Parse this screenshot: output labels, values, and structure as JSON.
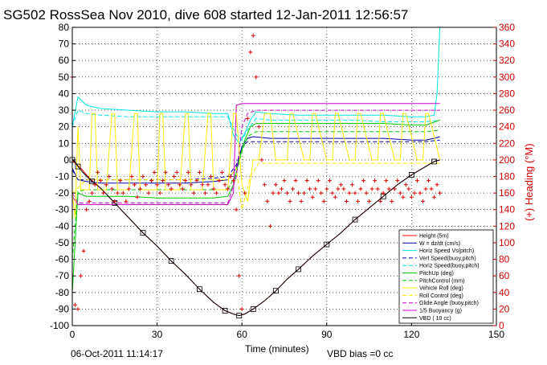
{
  "title": "SG502 RossSea Nov 2010, dive 608 started 12-Jan-2011 12:56:57",
  "footer_date": "06-Oct-2011 11:14:17",
  "footer_bias": "VBD bias =0 cc",
  "chart_data": {
    "type": "line",
    "xlabel": "Time (minutes)",
    "ylabel_right": "(+) Heading (°M)",
    "xlim": [
      0,
      150
    ],
    "ylim": [
      -100,
      80
    ],
    "ylim_right": [
      0,
      360
    ],
    "xticks": [
      "0",
      "30",
      "60",
      "90",
      "120",
      "150"
    ],
    "yticks": [
      "80",
      "70",
      "60",
      "50",
      "40",
      "30",
      "20",
      "10",
      "0",
      "-10",
      "-20",
      "-30",
      "-40",
      "-50",
      "-60",
      "-70",
      "-80",
      "-90",
      "-100"
    ],
    "yticks_right": [
      "360",
      "340",
      "320",
      "300",
      "280",
      "260",
      "240",
      "220",
      "200",
      "180",
      "160",
      "140",
      "120",
      "100",
      "80",
      "60",
      "40",
      "20",
      "0"
    ],
    "grid": true,
    "legend_position": "bottom-right",
    "legend": [
      {
        "name": "Height (5m)",
        "color": "#ff0000",
        "dash": ""
      },
      {
        "name": "W = dz/dt (cm/s)",
        "color": "#0000aa",
        "dash": ""
      },
      {
        "name": "Horiz Speed Vs(pitch)",
        "color": "#00e5e5",
        "dash": ""
      },
      {
        "name": "Vert Speed(buoy,pitch)",
        "color": "#0000aa",
        "dash": "5,3"
      },
      {
        "name": "Horiz Speed(buoy,pitch)",
        "color": "#00e5e5",
        "dash": "5,3"
      },
      {
        "name": "PitchUp (deg)",
        "color": "#00cc00",
        "dash": ""
      },
      {
        "name": "PitchControl (mm)",
        "color": "#00cc00",
        "dash": "5,3"
      },
      {
        "name": "Vehicle Roll (deg)",
        "color": "#ffee00",
        "dash": ""
      },
      {
        "name": "Roll Control (deg)",
        "color": "#ffee00",
        "dash": "5,3"
      },
      {
        "name": "Glide Angle (buoy,pitch)",
        "color": "#cc00cc",
        "dash": "5,3"
      },
      {
        "name": "1/5 Buoyancy (g)",
        "color": "#cc00cc",
        "dash": ""
      },
      {
        "name": "VBD ( 10 cc)",
        "color": "#000000",
        "dash": ""
      }
    ],
    "series": [
      {
        "name": "Height (5m)",
        "color": "#ff0000",
        "x": [
          0,
          1,
          3,
          6,
          10,
          15,
          20,
          25,
          30,
          35,
          40,
          45,
          50,
          54,
          57,
          59,
          61,
          64,
          68,
          72,
          76,
          80,
          85,
          90,
          95,
          100,
          105,
          110,
          115,
          120,
          125,
          128,
          130
        ],
        "y": [
          0,
          -2,
          -5,
          -11,
          -17,
          -26,
          -35,
          -44,
          -52,
          -61,
          -69,
          -78,
          -86,
          -91,
          -93,
          -94,
          -93,
          -90,
          -85,
          -79,
          -72,
          -66,
          -58,
          -51,
          -44,
          -36,
          -29,
          -22,
          -15,
          -9,
          -4,
          -1,
          0
        ]
      },
      {
        "name": "W = dz/dt (cm/s)",
        "color": "#0000aa",
        "x": [
          0,
          2,
          5,
          10,
          20,
          30,
          40,
          50,
          55,
          58,
          60,
          62,
          64,
          70,
          80,
          90,
          100,
          110,
          120,
          125,
          128,
          130
        ],
        "y": [
          -5,
          -12,
          -13,
          -14,
          -14,
          -14,
          -14,
          -13,
          -12,
          -5,
          8,
          13,
          14,
          13,
          13,
          13,
          13,
          13,
          12,
          12,
          13,
          14
        ]
      },
      {
        "name": "Vert Speed(buoy,pitch)",
        "color": "#0000aa",
        "dash": "5,3",
        "x": [
          0,
          2,
          5,
          10,
          20,
          30,
          40,
          50,
          55,
          58,
          60,
          62,
          64,
          70,
          80,
          90,
          100,
          110,
          120,
          125,
          130
        ],
        "y": [
          -6,
          -12,
          -12,
          -12,
          -12,
          -12,
          -12,
          -11,
          -10,
          -3,
          8,
          11,
          11,
          11,
          11,
          11,
          11,
          11,
          11,
          11,
          12
        ]
      },
      {
        "name": "Horiz Speed Vs(pitch)",
        "color": "#00e5e5",
        "x": [
          0,
          2,
          5,
          10,
          20,
          30,
          40,
          50,
          55,
          57,
          59,
          61,
          63,
          65,
          70,
          80,
          90,
          100,
          110,
          120,
          125,
          128,
          129,
          130
        ],
        "y": [
          20,
          38,
          33,
          31,
          30,
          29,
          29,
          28,
          28,
          15,
          10,
          16,
          24,
          29,
          28,
          27,
          27,
          27,
          27,
          26,
          26,
          27,
          40,
          80
        ]
      },
      {
        "name": "Horiz Speed(buoy,pitch)",
        "color": "#00e5e5",
        "dash": "5,3",
        "x": [
          0,
          2,
          5,
          10,
          20,
          30,
          40,
          50,
          55,
          58,
          60,
          62,
          65,
          70,
          80,
          90,
          100,
          110,
          120,
          125,
          130
        ],
        "y": [
          20,
          30,
          28,
          27,
          26,
          26,
          26,
          26,
          26,
          15,
          12,
          18,
          25,
          24,
          24,
          24,
          24,
          23,
          23,
          23,
          24
        ]
      },
      {
        "name": "PitchUp (deg)",
        "color": "#00cc00",
        "x": [
          0,
          2,
          5,
          10,
          20,
          30,
          40,
          50,
          55,
          57,
          59,
          61,
          63,
          65,
          70,
          80,
          90,
          100,
          110,
          120,
          125,
          130
        ],
        "y": [
          -80,
          -20,
          -22,
          -22,
          -22,
          -23,
          -23,
          -23,
          -22,
          -15,
          0,
          12,
          20,
          22,
          22,
          22,
          22,
          22,
          22,
          21,
          21,
          24
        ]
      },
      {
        "name": "PitchControl (mm)",
        "color": "#00cc00",
        "dash": "5,3",
        "x": [
          0,
          2,
          5,
          10,
          20,
          30,
          40,
          50,
          55,
          58,
          60,
          62,
          65,
          70,
          80,
          90,
          100,
          110,
          120,
          125,
          130
        ],
        "y": [
          -60,
          -19,
          -18,
          -18,
          -18,
          -18,
          -18,
          -18,
          -18,
          -8,
          5,
          14,
          17,
          17,
          17,
          17,
          17,
          17,
          17,
          17,
          18
        ]
      },
      {
        "name": "1/5 Buoyancy (g)",
        "color": "#cc00cc",
        "x": [
          0,
          2,
          5,
          10,
          20,
          30,
          40,
          50,
          55,
          57,
          58,
          60,
          62,
          65,
          70,
          80,
          90,
          100,
          110,
          120,
          125,
          130
        ],
        "y": [
          -22,
          -27,
          -27,
          -27,
          -27,
          -27,
          -27,
          -27,
          -27,
          -20,
          33,
          34,
          34,
          34,
          34,
          34,
          34,
          34,
          34,
          34,
          34,
          34
        ]
      },
      {
        "name": "Glide Angle (buoy,pitch)",
        "color": "#cc00cc",
        "dash": "5,3",
        "x": [
          0,
          2,
          5,
          10,
          20,
          30,
          40,
          50,
          55,
          58,
          60,
          62,
          65,
          70,
          80,
          90,
          100,
          110,
          120,
          125,
          130
        ],
        "y": [
          -20,
          -26,
          -26,
          -26,
          -26,
          -26,
          -26,
          -26,
          -26,
          -10,
          20,
          28,
          30,
          30,
          30,
          30,
          30,
          30,
          30,
          30,
          30
        ]
      },
      {
        "name": "Vehicle Roll (deg)",
        "color": "#ffee00",
        "x": [
          0,
          1,
          2,
          3,
          6,
          7,
          8,
          9,
          12,
          14,
          15,
          16,
          20,
          22,
          23,
          24,
          30,
          31,
          32,
          33,
          38,
          40,
          41,
          42,
          46,
          48,
          49,
          50,
          55,
          57,
          58,
          60,
          62,
          64,
          66,
          68,
          70,
          72,
          76,
          77,
          78,
          82,
          84,
          85,
          86,
          90,
          92,
          93,
          94,
          98,
          100,
          101,
          102,
          106,
          108,
          109,
          110,
          114,
          116,
          117,
          118,
          122,
          124,
          125,
          126,
          130
        ],
        "y": [
          -20,
          -35,
          20,
          -18,
          -18,
          28,
          28,
          -18,
          -18,
          28,
          28,
          -18,
          -18,
          28,
          28,
          -18,
          -18,
          28,
          28,
          -18,
          -18,
          28,
          28,
          -18,
          -18,
          28,
          28,
          -18,
          -18,
          28,
          28,
          -15,
          -25,
          0,
          0,
          28,
          28,
          0,
          0,
          28,
          28,
          0,
          0,
          28,
          28,
          0,
          0,
          28,
          28,
          0,
          0,
          28,
          28,
          0,
          0,
          28,
          28,
          0,
          0,
          28,
          28,
          0,
          0,
          28,
          28,
          0
        ]
      },
      {
        "name": "Roll Control (deg)",
        "color": "#ffee00",
        "dash": "5,3",
        "x": [
          0,
          5,
          10,
          20,
          30,
          40,
          50,
          55,
          58,
          60,
          63,
          66,
          70,
          80,
          90,
          100,
          110,
          120,
          130
        ],
        "y": [
          -20,
          -12,
          -12,
          -12,
          -12,
          -12,
          -12,
          -12,
          -5,
          -30,
          -10,
          -2,
          -2,
          -2,
          -2,
          -2,
          -2,
          -2,
          -2
        ]
      },
      {
        "name": "VBD ( 10 cc)",
        "color": "#000000",
        "x": [
          0,
          1,
          2,
          4,
          7,
          10,
          15,
          20,
          25,
          30,
          35,
          40,
          45,
          50,
          54,
          57,
          59,
          61,
          64,
          68,
          72,
          76,
          80,
          85,
          90,
          95,
          100,
          105,
          110,
          115,
          120,
          125,
          128,
          130
        ],
        "y": [
          0,
          -1,
          -4,
          -8,
          -13,
          -17,
          -26,
          -35,
          -44,
          -52,
          -61,
          -69,
          -78,
          -86,
          -91,
          -93,
          -94,
          -93,
          -90,
          -85,
          -79,
          -72,
          -66,
          -58,
          -51,
          -44,
          -36,
          -29,
          -22,
          -15,
          -9,
          -4,
          -1,
          0
        ]
      }
    ],
    "heading_series": {
      "name": "Heading",
      "axis": "right",
      "color": "#dd0000",
      "marker": "+",
      "x": [
        0,
        1,
        2,
        3,
        4,
        5,
        6,
        7,
        8,
        9,
        10,
        11,
        12,
        13,
        14,
        15,
        16,
        17,
        18,
        19,
        20,
        21,
        22,
        23,
        24,
        25,
        26,
        27,
        28,
        29,
        30,
        31,
        32,
        33,
        34,
        35,
        36,
        37,
        38,
        39,
        40,
        41,
        42,
        43,
        44,
        45,
        46,
        47,
        48,
        49,
        50,
        51,
        52,
        53,
        54,
        55,
        56,
        57,
        58,
        59,
        60,
        61,
        62,
        63,
        64,
        65,
        66,
        67,
        68,
        69,
        70,
        71,
        72,
        73,
        74,
        75,
        76,
        77,
        78,
        79,
        80,
        81,
        82,
        83,
        84,
        85,
        86,
        87,
        88,
        89,
        90,
        91,
        92,
        93,
        94,
        95,
        96,
        97,
        98,
        99,
        100,
        101,
        102,
        103,
        104,
        105,
        106,
        107,
        108,
        109,
        110,
        111,
        112,
        113,
        114,
        115,
        116,
        117,
        118,
        119,
        120,
        121,
        122,
        123,
        124,
        125,
        126,
        127,
        128,
        129,
        130
      ],
      "y": [
        300,
        25,
        20,
        60,
        90,
        140,
        150,
        160,
        170,
        185,
        175,
        160,
        170,
        180,
        165,
        150,
        160,
        175,
        160,
        150,
        165,
        180,
        170,
        155,
        165,
        180,
        170,
        160,
        175,
        185,
        170,
        160,
        175,
        185,
        170,
        165,
        180,
        185,
        170,
        165,
        175,
        185,
        170,
        160,
        175,
        185,
        170,
        160,
        170,
        180,
        165,
        160,
        175,
        185,
        170,
        165,
        180,
        175,
        140,
        60,
        20,
        160,
        250,
        330,
        350,
        300,
        240,
        200,
        170,
        150,
        120,
        160,
        170,
        160,
        165,
        175,
        160,
        150,
        165,
        175,
        160,
        150,
        160,
        175,
        165,
        155,
        165,
        175,
        160,
        150,
        165,
        175,
        160,
        155,
        165,
        170,
        165,
        150,
        160,
        170,
        160,
        150,
        165,
        175,
        160,
        150,
        165,
        175,
        165,
        150,
        160,
        175,
        165,
        150,
        165,
        175,
        160,
        155,
        170,
        165,
        155,
        160,
        175,
        160,
        150,
        165,
        175,
        165,
        155,
        170,
        160
      ]
    }
  }
}
